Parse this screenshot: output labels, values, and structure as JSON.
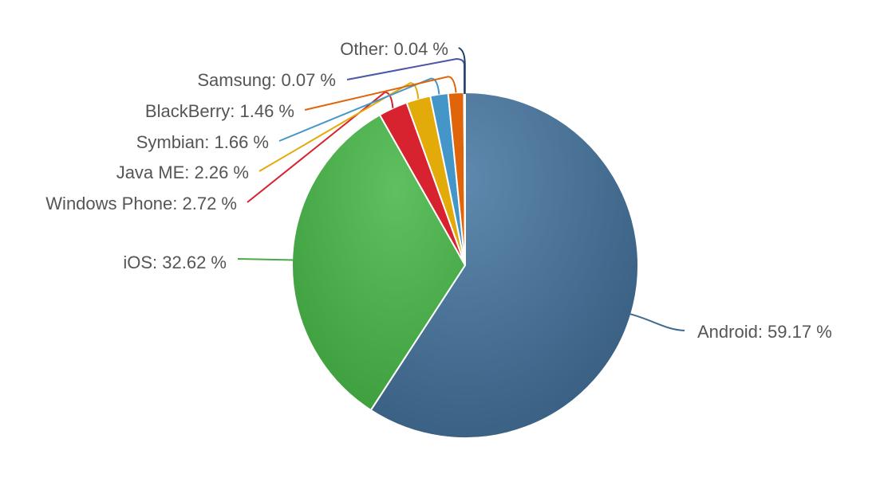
{
  "chart_data": {
    "type": "pie",
    "title": "",
    "slices": [
      {
        "label": "Android",
        "value": 59.17,
        "display": "Android: 59.17 %",
        "color": "#3f6a92"
      },
      {
        "label": "iOS",
        "value": 32.62,
        "display": "iOS: 32.62 %",
        "color": "#4aaa4a"
      },
      {
        "label": "Windows Phone",
        "value": 2.72,
        "display": "Windows Phone: 2.72 %",
        "color": "#d7222f"
      },
      {
        "label": "Java ME",
        "value": 2.26,
        "display": "Java ME: 2.26 %",
        "color": "#e3ab0a"
      },
      {
        "label": "Symbian",
        "value": 1.66,
        "display": "Symbian: 1.66 %",
        "color": "#4496c8"
      },
      {
        "label": "BlackBerry",
        "value": 1.46,
        "display": "BlackBerry: 1.46 %",
        "color": "#e0640a"
      },
      {
        "label": "Samsung",
        "value": 0.07,
        "display": "Samsung: 0.07 %",
        "color": "#4a56a8"
      },
      {
        "label": "Other",
        "value": 0.04,
        "display": "Other: 0.04 %",
        "color": "#1c3f5c"
      }
    ]
  }
}
